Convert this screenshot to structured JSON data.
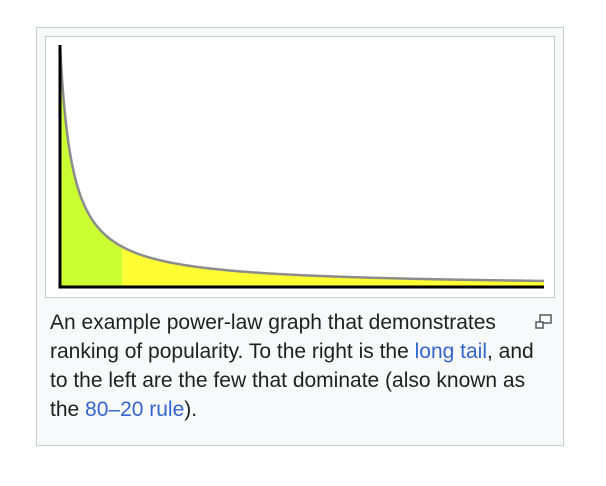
{
  "figure": {
    "caption_parts": {
      "before_long_tail": "An example power-law graph that demonstrates ranking of popularity. To the right is the ",
      "long_tail_link": "long tail",
      "middle": ", and to the left are the few that dominate (also known as the ",
      "rule_link": "80–20 rule",
      "after": ")."
    },
    "enlarge_icon": "magnify-clip-icon",
    "colors": {
      "head_fill": "#ccff33",
      "tail_fill": "#ffff33",
      "curve": "#8c8c8c",
      "axis": "#000000",
      "link": "#3366cc"
    }
  },
  "chart_data": {
    "type": "area",
    "function": "power-law (y ∝ 1/x)",
    "x": [
      0.25,
      0.3,
      0.4,
      0.5,
      0.75,
      1,
      1.5,
      2,
      3,
      4,
      5,
      7,
      10
    ],
    "y": [
      4.0,
      3.33,
      2.5,
      2.0,
      1.33,
      1.0,
      0.67,
      0.5,
      0.33,
      0.25,
      0.2,
      0.14,
      0.1
    ],
    "xlim": [
      0.25,
      10
    ],
    "ylim": [
      0,
      4
    ],
    "regions": [
      {
        "name": "head",
        "x_from": 0.25,
        "x_to": 1.5,
        "color": "#ccff33"
      },
      {
        "name": "tail",
        "x_from": 1.5,
        "x_to": 10,
        "color": "#ffff33"
      }
    ],
    "title": "",
    "xlabel": "",
    "ylabel": "",
    "grid": false
  }
}
